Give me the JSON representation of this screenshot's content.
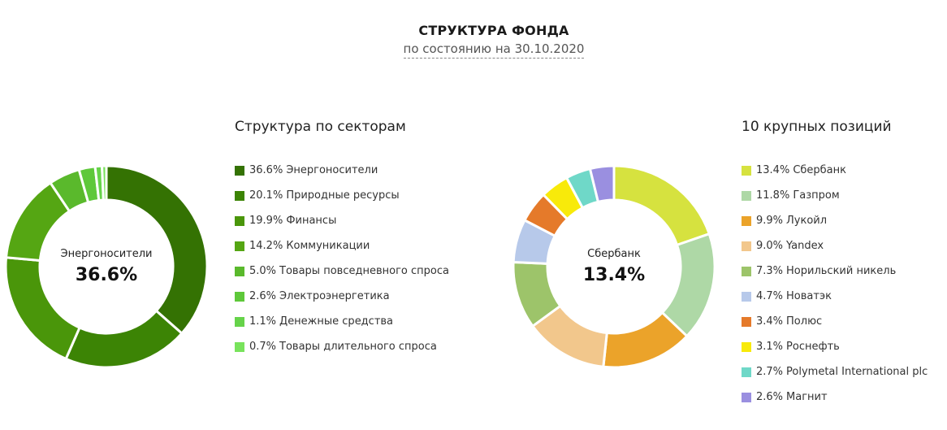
{
  "header": {
    "title": "СТРУКТУРА ФОНДА",
    "subtitle": "по состоянию на 30.10.2020"
  },
  "chart_data": [
    {
      "type": "pie",
      "title": "Структура по секторам",
      "center_label": "Энергоносители",
      "center_value": "36.6%",
      "slices": [
        {
          "label": "Энергоносители",
          "value": 36.6,
          "display": "36.6%",
          "color": "#347203"
        },
        {
          "label": "Природные ресурсы",
          "value": 20.1,
          "display": "20.1%",
          "color": "#3c8405"
        },
        {
          "label": "Финансы",
          "value": 19.9,
          "display": "19.9%",
          "color": "#4a960a"
        },
        {
          "label": "Коммуникации",
          "value": 14.2,
          "display": "14.2%",
          "color": "#55a613"
        },
        {
          "label": "Товары повседневного спроса",
          "value": 5.0,
          "display": "5.0%",
          "color": "#5ab92c"
        },
        {
          "label": "Электроэнергетика",
          "value": 2.6,
          "display": "2.6%",
          "color": "#5ec83a"
        },
        {
          "label": "Денежные средства",
          "value": 1.1,
          "display": "1.1%",
          "color": "#66d34a"
        },
        {
          "label": "Товары длительного спроса",
          "value": 0.7,
          "display": "0.7%",
          "color": "#78e35c"
        }
      ]
    },
    {
      "type": "pie",
      "title": "10 крупных позиций",
      "center_label": "Сбербанк",
      "center_value": "13.4%",
      "slices": [
        {
          "label": "Сбербанк",
          "value": 13.4,
          "display": "13.4%",
          "color": "#d6e23f"
        },
        {
          "label": "Газпром",
          "value": 11.8,
          "display": "11.8%",
          "color": "#aed8a6"
        },
        {
          "label": "Лукойл",
          "value": 9.9,
          "display": "9.9%",
          "color": "#eba32a"
        },
        {
          "label": "Yandex",
          "value": 9.0,
          "display": "9.0%",
          "color": "#f2c78c"
        },
        {
          "label": "Норильский никель",
          "value": 7.3,
          "display": "7.3%",
          "color": "#9dc46a"
        },
        {
          "label": "Новатэк",
          "value": 4.7,
          "display": "4.7%",
          "color": "#b7c9ea"
        },
        {
          "label": "Полюс",
          "value": 3.4,
          "display": "3.4%",
          "color": "#e57a2a"
        },
        {
          "label": "Роснефть",
          "value": 3.1,
          "display": "3.1%",
          "color": "#f8ea0a"
        },
        {
          "label": "Polymetal International plc",
          "value": 2.7,
          "display": "2.7%",
          "color": "#6fd8c8"
        },
        {
          "label": "Магнит",
          "value": 2.6,
          "display": "2.6%",
          "color": "#9a8fe0"
        }
      ]
    }
  ]
}
